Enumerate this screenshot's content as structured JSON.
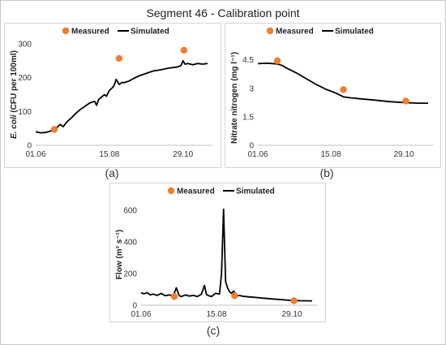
{
  "figure": {
    "title": "Segment 46 - Calibration point",
    "captions": [
      "(a)",
      "(b)",
      "(c)"
    ]
  },
  "colors": {
    "measured": "#ED7D31",
    "simulated": "#000000",
    "axis": "#bfbfbf",
    "text": "#333333"
  },
  "chart_data": [
    {
      "type": "line",
      "panel": "a",
      "title": "",
      "ylabel_italic": "E. coli",
      "ylabel_rest": " (CFU per 100ml)",
      "xlabel": "",
      "x_ticks": [
        "01.06",
        "15.08",
        "29.10"
      ],
      "x_tick_days": [
        0,
        75,
        150
      ],
      "x_range": [
        0,
        180
      ],
      "y_ticks": [
        0,
        100,
        200,
        300
      ],
      "ylim": [
        0,
        300
      ],
      "legend": {
        "position": "top",
        "entries": [
          "Measured",
          "Simulated"
        ]
      },
      "series": [
        {
          "name": "Simulated",
          "kind": "line",
          "x": [
            0,
            5,
            10,
            15,
            20,
            25,
            28,
            32,
            36,
            40,
            45,
            50,
            55,
            60,
            62,
            64,
            66,
            70,
            72,
            75,
            78,
            80,
            82,
            85,
            88,
            90,
            95,
            100,
            105,
            110,
            115,
            120,
            125,
            130,
            135,
            140,
            145,
            148,
            150,
            152,
            155,
            160,
            165,
            170,
            175
          ],
          "y": [
            40,
            37,
            38,
            42,
            48,
            62,
            55,
            70,
            80,
            92,
            105,
            115,
            125,
            130,
            118,
            135,
            140,
            150,
            145,
            162,
            170,
            178,
            195,
            180,
            186,
            185,
            190,
            198,
            205,
            210,
            215,
            220,
            222,
            225,
            228,
            230,
            232,
            236,
            250,
            240,
            242,
            238,
            242,
            240,
            242
          ]
        },
        {
          "name": "Measured",
          "kind": "scatter",
          "x": [
            19,
            85,
            151
          ],
          "y": [
            47,
            257,
            281
          ]
        }
      ]
    },
    {
      "type": "line",
      "panel": "b",
      "title": "",
      "ylabel": "Nitrate nitrogen (mg l⁻¹)",
      "xlabel": "",
      "x_ticks": [
        "01.06",
        "15.08",
        "29.10"
      ],
      "x_tick_days": [
        0,
        75,
        150
      ],
      "x_range": [
        0,
        180
      ],
      "y_ticks": [
        0,
        1.5,
        3,
        4.5
      ],
      "ylim": [
        0,
        5
      ],
      "legend": {
        "position": "top",
        "entries": [
          "Measured",
          "Simulated"
        ]
      },
      "series": [
        {
          "name": "Simulated",
          "kind": "line",
          "x": [
            0,
            10,
            20,
            25,
            30,
            40,
            50,
            60,
            70,
            80,
            88,
            95,
            105,
            120,
            135,
            150,
            165,
            175
          ],
          "y": [
            4.3,
            4.32,
            4.28,
            4.2,
            4.05,
            3.8,
            3.5,
            3.2,
            2.95,
            2.75,
            2.55,
            2.5,
            2.45,
            2.38,
            2.3,
            2.25,
            2.22,
            2.22
          ]
        },
        {
          "name": "Measured",
          "kind": "scatter",
          "x": [
            20,
            88,
            152
          ],
          "y": [
            4.45,
            2.93,
            2.33
          ]
        }
      ]
    },
    {
      "type": "line",
      "panel": "c",
      "title": "",
      "ylabel": "Flow (m³ s⁻¹)",
      "xlabel": "",
      "x_ticks": [
        "01.06",
        "15.08",
        "29.10"
      ],
      "x_tick_days": [
        0,
        75,
        150
      ],
      "x_range": [
        0,
        175
      ],
      "y_ticks": [
        0,
        200,
        400,
        600
      ],
      "ylim": [
        0,
        640
      ],
      "legend": {
        "position": "top",
        "entries": [
          "Measured",
          "Simulated"
        ]
      },
      "series": [
        {
          "name": "Simulated",
          "kind": "line",
          "x": [
            0,
            3,
            6,
            9,
            12,
            16,
            20,
            24,
            28,
            32,
            35,
            38,
            40,
            44,
            48,
            52,
            56,
            60,
            63,
            65,
            67,
            70,
            74,
            78,
            80,
            82,
            84,
            86,
            88,
            90,
            92,
            94,
            96,
            98,
            100,
            104,
            108,
            112,
            116,
            120,
            130,
            140,
            150,
            160,
            170
          ],
          "y": [
            78,
            72,
            80,
            65,
            70,
            62,
            75,
            60,
            65,
            58,
            110,
            60,
            55,
            65,
            58,
            62,
            55,
            70,
            125,
            68,
            60,
            55,
            75,
            70,
            200,
            605,
            150,
            110,
            85,
            75,
            90,
            70,
            60,
            62,
            58,
            55,
            52,
            50,
            48,
            45,
            40,
            35,
            30,
            28,
            27
          ]
        },
        {
          "name": "Measured",
          "kind": "scatter",
          "x": [
            33,
            93,
            152
          ],
          "y": [
            55,
            60,
            28
          ]
        }
      ]
    }
  ]
}
